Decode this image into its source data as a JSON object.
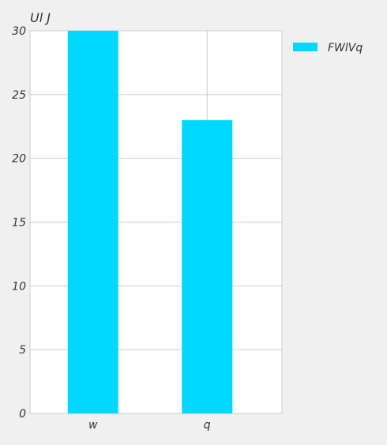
{
  "chart_data": {
    "type": "bar",
    "title": "",
    "ylabel": "Ul J",
    "xlabel": "",
    "categories": [
      "w",
      "q"
    ],
    "series": [
      {
        "name": "FWlVq",
        "values": [
          30,
          23
        ]
      }
    ],
    "ylim": [
      0,
      30
    ],
    "yticks": [
      0,
      5,
      10,
      15,
      20,
      25,
      30
    ],
    "grid": true,
    "legend": "top-right",
    "colors": {
      "bar": "#00d8ff",
      "grid": "#cccccc",
      "plot_bg": "#ffffff",
      "page_bg": "#f0f0f0",
      "text": "#333333"
    }
  }
}
